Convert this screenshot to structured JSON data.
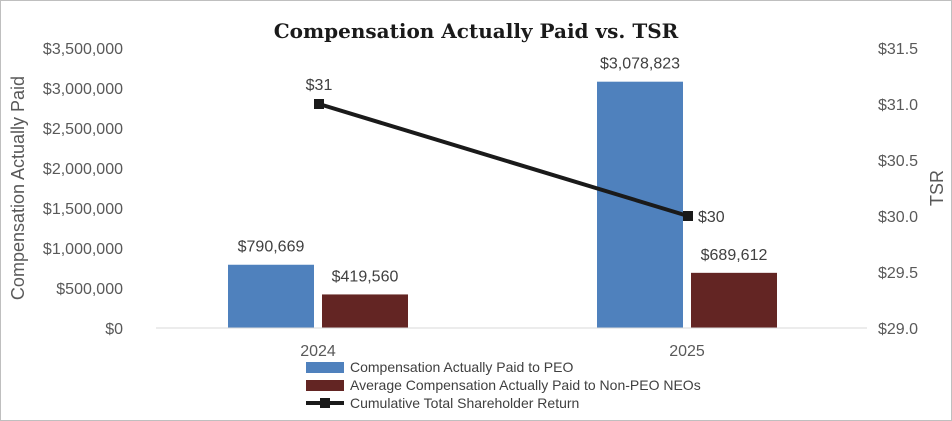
{
  "chart_data": {
    "type": "bar",
    "title": "Compensation Actually Paid vs. TSR",
    "categories": [
      "2024",
      "2025"
    ],
    "ylabel_left": "Compensation Actually Paid",
    "ylabel_right": "TSR",
    "ylim_left": [
      0,
      3500000
    ],
    "ylim_right": [
      29.0,
      31.5
    ],
    "yticks_left": [
      "$0",
      "$500,000",
      "$1,000,000",
      "$1,500,000",
      "$2,000,000",
      "$2,500,000",
      "$3,000,000",
      "$3,500,000"
    ],
    "yticks_right": [
      "$29.0",
      "$29.5",
      "$30.0",
      "$30.5",
      "$31.0",
      "$31.5"
    ],
    "grid": false,
    "legend_position": "bottom",
    "series": [
      {
        "name": "Compensation Actually Paid to PEO",
        "kind": "bar",
        "axis": "left",
        "color": "#4f81bd",
        "values": [
          790669,
          3078823
        ],
        "labels": [
          "$790,669",
          "$3,078,823"
        ]
      },
      {
        "name": "Average Compensation Actually Paid to Non-PEO NEOs",
        "kind": "bar",
        "axis": "left",
        "color": "#632523",
        "values": [
          419560,
          689612
        ],
        "labels": [
          "$419,560",
          "$689,612"
        ]
      },
      {
        "name": "Cumulative Total Shareholder Return",
        "kind": "line",
        "axis": "right",
        "color": "#1a1a1a",
        "values": [
          31,
          30
        ],
        "labels": [
          "$31",
          "$30"
        ]
      }
    ]
  }
}
